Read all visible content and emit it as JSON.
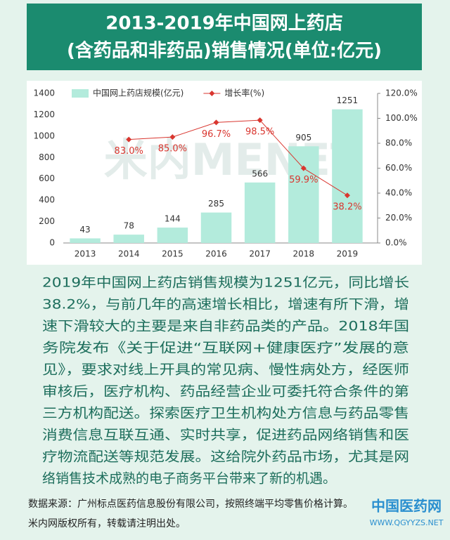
{
  "header": {
    "title_lines": [
      "2013-2019年中国网上药店",
      "(含药品和非药品)销售情况(单位:亿元)"
    ]
  },
  "chart_data": {
    "type": "bar",
    "categories": [
      "2013",
      "2014",
      "2015",
      "2016",
      "2017",
      "2018",
      "2019"
    ],
    "series": [
      {
        "name": "中国网上药店规模(亿元)",
        "color": "#b3ebdc",
        "type": "bar",
        "values": [
          43,
          78,
          144,
          285,
          566,
          905,
          1251
        ]
      },
      {
        "name": "增长率(%)",
        "color": "#d9362f",
        "type": "line",
        "axis": "y2",
        "values": [
          null,
          83.0,
          85.0,
          96.7,
          98.5,
          59.9,
          38.2
        ],
        "value_labels": [
          null,
          "83.0%",
          "85.0%",
          "96.7%",
          "98.5%",
          "59.9%",
          "38.2%"
        ]
      }
    ],
    "ylim": [
      0,
      1400
    ],
    "yticks": [
      0,
      200,
      400,
      600,
      800,
      1000,
      1200,
      1400
    ],
    "y2lim": [
      0,
      120
    ],
    "y2ticks": [
      {
        "value": 0,
        "label": "0.0%"
      },
      {
        "value": 20,
        "label": "20.0%"
      },
      {
        "value": 40,
        "label": "40.0%"
      },
      {
        "value": 60,
        "label": "60.0%"
      },
      {
        "value": 80,
        "label": "80.0%"
      },
      {
        "value": 100,
        "label": "100.0%"
      },
      {
        "value": 120,
        "label": "120.0%"
      }
    ],
    "legend": "top",
    "watermark": "米内MENET"
  },
  "body": {
    "lines": [
      "2019年中国网上药店销售规模为1251亿元，同比增长",
      "38.2%，与前几年的高速增长相比，增速有所下滑，增",
      "速下滑较大的主要是来自非药品类的产品。2018年国",
      "务院发布《关于促进“互联网+健康医疗”发展的意",
      "见》，要求对线上开具的常见病、慢性病处方，经医师",
      "审核后，医疗机构、药品经营企业可委托符合条件的第",
      "三方机构配送。探索医疗卫生机构处方信息与药品零售",
      "消费信息互联互通、实时共享，促进药品网络销售和医",
      "疗物流配送等规范发展。这给院外药品市场，尤其是网",
      "络销售技术成熟的电子商务平台带来了新的机遇。"
    ]
  },
  "footer": {
    "lines": [
      "数据来源：广州标点医药信息股份有限公司，按照终端平均零售价格计算。",
      "米内网版权所有，转载请注明出处。"
    ],
    "logo": "中国医药网",
    "logo_url": "WWW.QGYYZS.NET"
  }
}
